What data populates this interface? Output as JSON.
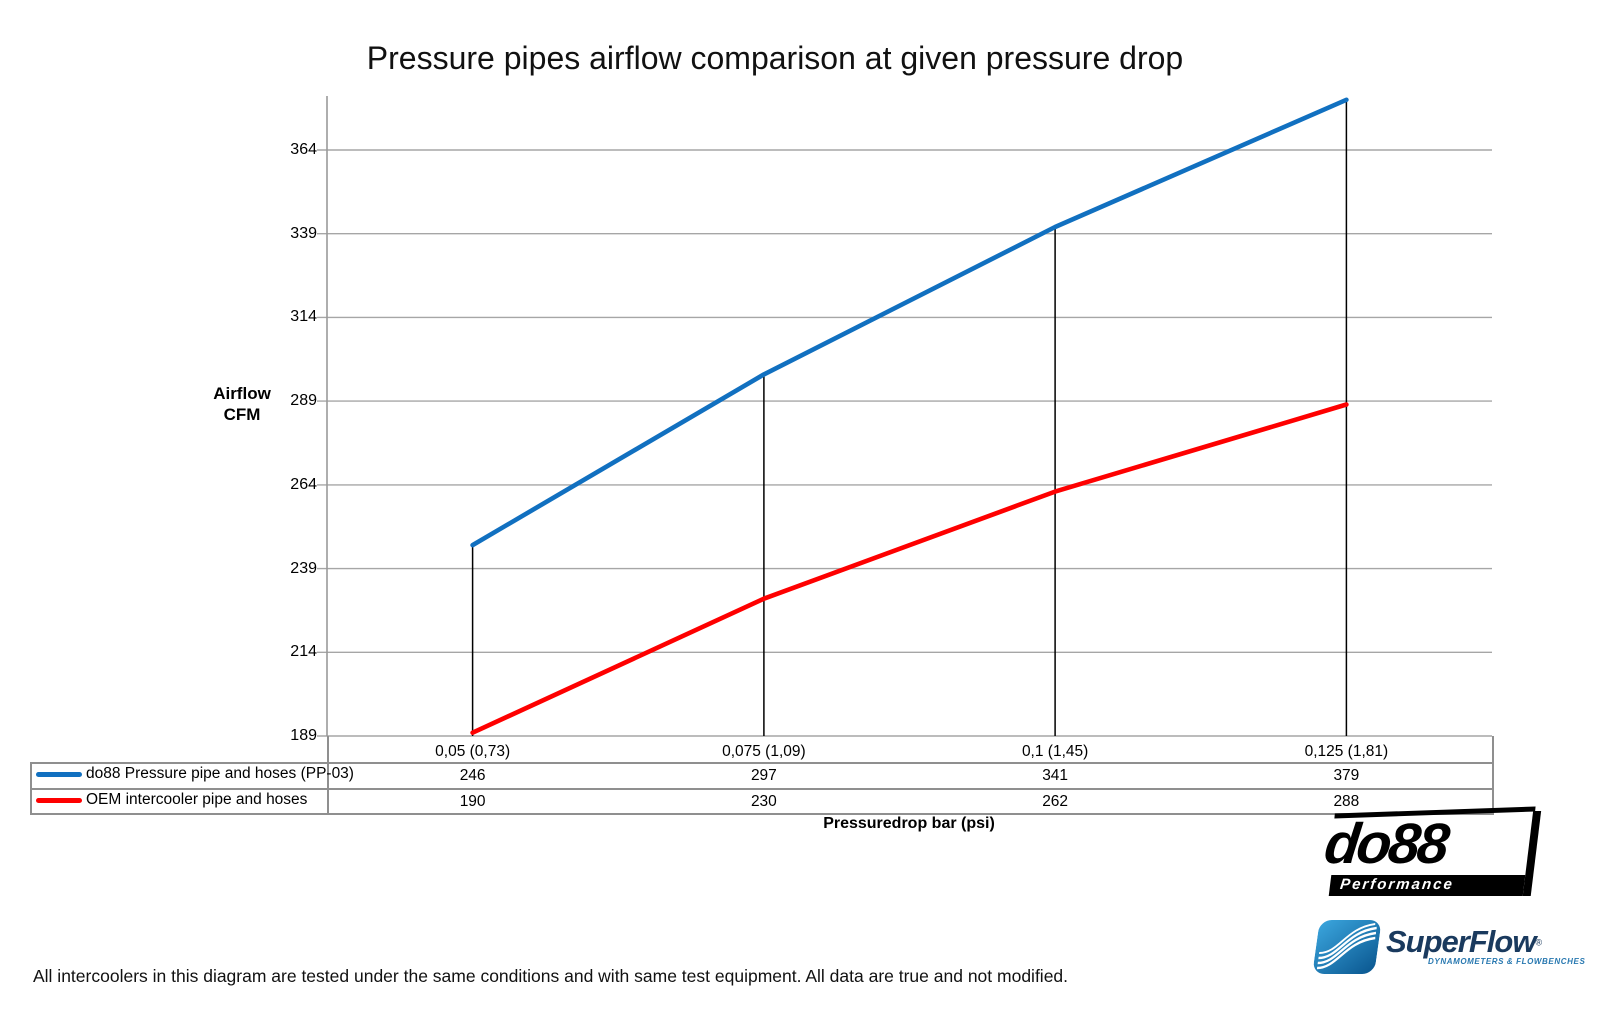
{
  "title": "Pressure pipes airflow comparison at given pressure drop",
  "chart_data": {
    "type": "line",
    "title": "Pressure pipes airflow comparison at given pressure drop",
    "xlabel": "Pressuredrop bar (psi)",
    "ylabel": "Airflow CFM",
    "ylabel_line1": "Airflow",
    "ylabel_line2": "CFM",
    "categories": [
      "0,05 (0,73)",
      "0,075 (1,09)",
      "0,1 (1,45)",
      "0,125 (1,81)"
    ],
    "y_ticks": [
      189,
      214,
      239,
      264,
      289,
      314,
      339,
      364
    ],
    "ylim": [
      189,
      381
    ],
    "grid": true,
    "drop_lines": true,
    "legend_position": "bottom-left-table",
    "series": [
      {
        "name": "do88 Pressure pipe and hoses (PP-03)",
        "color": "#1170C0",
        "values": [
          246,
          297,
          341,
          379
        ]
      },
      {
        "name": "OEM intercooler pipe and hoses",
        "color": "#FE0000",
        "values": [
          190,
          230,
          262,
          288
        ]
      }
    ]
  },
  "colors": {
    "background": "#FFFFFF",
    "grid": "#A6A6A6",
    "axis": "#9A9A9A",
    "table_border": "#8F8F8F",
    "drop_line": "#000000",
    "do88_black": "#000000",
    "superflow_navy": "#1A3A5E",
    "superflow_blue": "#2878B0"
  },
  "footer_note": "All intercoolers in this diagram are tested under the same conditions and with same test equipment. All data are true and not modified.",
  "logos": {
    "do88": {
      "name": "do88",
      "tagline": "Performance"
    },
    "superflow": {
      "name": "SuperFlow",
      "mark": "®",
      "tagline": "DYNAMOMETERS & FLOWBENCHES"
    }
  }
}
